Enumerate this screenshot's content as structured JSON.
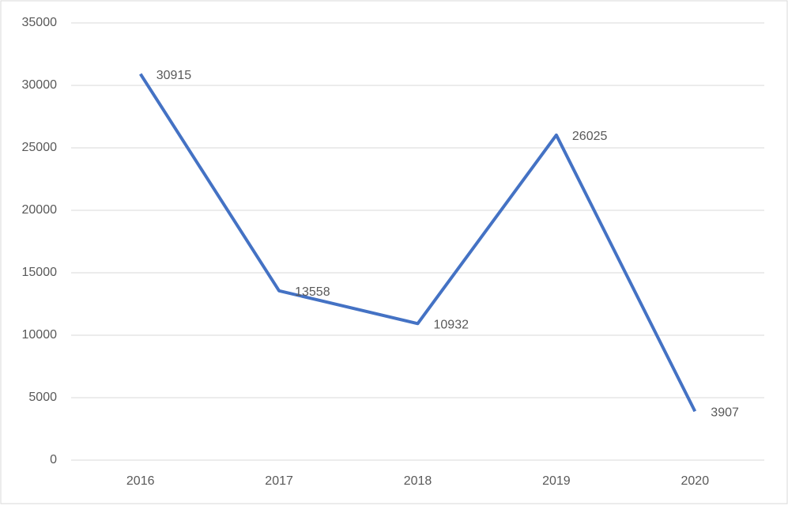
{
  "chart_data": {
    "type": "line",
    "categories": [
      "2016",
      "2017",
      "2018",
      "2019",
      "2020"
    ],
    "series": [
      {
        "color": "#4472c4",
        "values": [
          30915,
          13558,
          10932,
          26025,
          3907
        ]
      }
    ],
    "ylim": [
      0,
      35000
    ],
    "yticks": [
      0,
      5000,
      10000,
      15000,
      20000,
      25000,
      30000,
      35000
    ],
    "grid": true,
    "data_labels": true
  }
}
